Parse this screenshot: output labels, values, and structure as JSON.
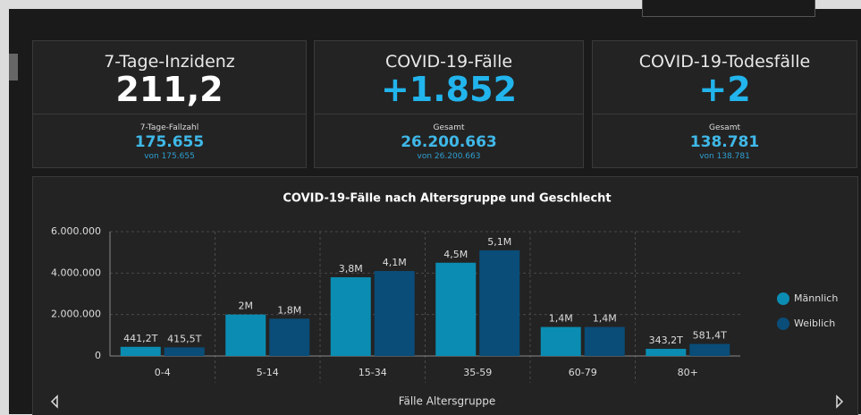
{
  "cards": [
    {
      "title": "7-Tage-Inzidenz",
      "value": "211,2",
      "sub_label": "7-Tage-Fallzahl",
      "sub_value": "175.655",
      "sub_note": "von 175.655"
    },
    {
      "title": "COVID-19-Fälle",
      "value": "+1.852",
      "sub_label": "Gesamt",
      "sub_value": "26.200.663",
      "sub_note": "von 26.200.663"
    },
    {
      "title": "COVID-19-Todesfälle",
      "value": "+2",
      "sub_label": "Gesamt",
      "sub_value": "138.781",
      "sub_note": "von 138.781"
    }
  ],
  "chart_data": {
    "type": "bar",
    "title": "COVID-19-Fälle nach Altersgruppe und Geschlecht",
    "x_label": "Fälle Altersgruppe",
    "categories": [
      "0-4",
      "5-14",
      "15-34",
      "35-59",
      "60-79",
      "80+"
    ],
    "series": [
      {
        "name": "Männlich",
        "color": "#0b8db3",
        "values": [
          441200,
          2000000,
          3800000,
          4500000,
          1400000,
          343200
        ],
        "value_labels": [
          "441,2T",
          "2M",
          "3,8M",
          "4,5M",
          "1,4M",
          "343,2T"
        ]
      },
      {
        "name": "Weiblich",
        "color": "#0a4d78",
        "values": [
          415500,
          1800000,
          4100000,
          5100000,
          1400000,
          581400
        ],
        "value_labels": [
          "415,5T",
          "1,8M",
          "4,1M",
          "5,1M",
          "1,4M",
          "581,4T"
        ]
      }
    ],
    "ylim": [
      0,
      6000000
    ],
    "yticks": [
      0,
      {
        "value": 2000000,
        "label": "2.000.000"
      },
      {
        "value": 4000000,
        "label": "4.000.000"
      },
      {
        "value": 6000000,
        "label": "6.000.000"
      }
    ],
    "grid": true,
    "legend": "right"
  }
}
